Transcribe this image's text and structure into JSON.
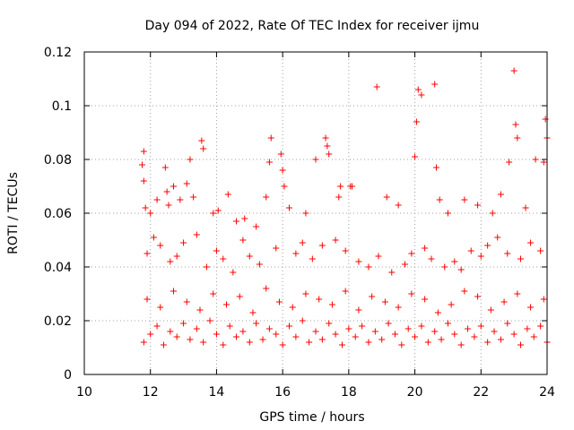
{
  "chart_data": {
    "type": "scatter",
    "title": "Day 094 of 2022, Rate Of TEC Index for receiver ijmu",
    "xlabel": "GPS time / hours",
    "ylabel": "ROTI / TECUs",
    "xlim": [
      10,
      24
    ],
    "ylim": [
      0,
      0.12
    ],
    "x_ticks": [
      10,
      12,
      14,
      16,
      18,
      20,
      22,
      24
    ],
    "x_tick_labels": [
      "10",
      "12",
      "14",
      "16",
      "18",
      "20",
      "22",
      "24"
    ],
    "y_ticks": [
      0,
      0.02,
      0.04,
      0.06,
      0.08,
      0.1,
      0.12
    ],
    "y_tick_labels": [
      "0",
      "0.02",
      "0.04",
      "0.06",
      "0.08",
      "0.1",
      "0.12"
    ],
    "grid": true,
    "marker": "+",
    "color": "#ff0000",
    "series": [
      {
        "name": "ROTI",
        "x": [
          11.75,
          11.8,
          11.8,
          11.85,
          12.0,
          12.2,
          12.45,
          12.5,
          12.55,
          12.7,
          12.9,
          13.1,
          13.2,
          13.3,
          13.55,
          13.6,
          13.9,
          14.05,
          14.35,
          14.6,
          14.85,
          15.2,
          15.5,
          15.6,
          15.65,
          15.95,
          16.0,
          16.05,
          16.2,
          16.7,
          17.0,
          17.3,
          17.35,
          17.4,
          17.7,
          17.75,
          18.05,
          18.1,
          18.85,
          19.15,
          19.5,
          20.0,
          20.05,
          20.1,
          20.2,
          20.6,
          20.65,
          20.75,
          21.0,
          21.5,
          21.9,
          22.35,
          22.6,
          22.85,
          23.0,
          23.05,
          23.1,
          23.35,
          23.65,
          23.9,
          23.95,
          24.0,
          11.9,
          12.1,
          12.3,
          12.6,
          12.8,
          13.0,
          13.4,
          13.7,
          14.0,
          14.2,
          14.5,
          14.8,
          15.0,
          15.3,
          15.8,
          16.4,
          16.6,
          16.9,
          17.2,
          17.6,
          17.9,
          18.3,
          18.6,
          18.9,
          19.3,
          19.7,
          19.9,
          20.3,
          20.5,
          20.9,
          21.2,
          21.4,
          21.7,
          22.0,
          22.2,
          22.5,
          22.8,
          23.2,
          23.5,
          23.8,
          11.8,
          12.0,
          12.2,
          12.4,
          12.6,
          12.8,
          13.0,
          13.2,
          13.4,
          13.6,
          13.8,
          14.0,
          14.2,
          14.4,
          14.6,
          14.8,
          15.0,
          15.2,
          15.4,
          15.6,
          15.8,
          16.0,
          16.2,
          16.4,
          16.6,
          16.8,
          17.0,
          17.2,
          17.4,
          17.6,
          17.8,
          18.0,
          18.2,
          18.4,
          18.6,
          18.8,
          19.0,
          19.2,
          19.4,
          19.6,
          19.8,
          20.0,
          20.2,
          20.4,
          20.6,
          20.8,
          21.0,
          21.2,
          21.4,
          21.6,
          21.8,
          22.0,
          22.2,
          22.4,
          22.6,
          22.8,
          23.0,
          23.2,
          23.4,
          23.6,
          23.8,
          24.0,
          11.9,
          12.3,
          12.7,
          13.1,
          13.5,
          13.9,
          14.3,
          14.7,
          15.1,
          15.5,
          15.9,
          16.3,
          16.7,
          17.1,
          17.5,
          17.9,
          18.3,
          18.7,
          19.1,
          19.5,
          19.9,
          20.3,
          20.7,
          21.1,
          21.5,
          21.9,
          22.3,
          22.7,
          23.1,
          23.5,
          23.9
        ],
        "y": [
          0.078,
          0.083,
          0.072,
          0.062,
          0.06,
          0.065,
          0.077,
          0.068,
          0.063,
          0.07,
          0.065,
          0.071,
          0.08,
          0.066,
          0.087,
          0.084,
          0.06,
          0.061,
          0.067,
          0.057,
          0.058,
          0.055,
          0.066,
          0.079,
          0.088,
          0.082,
          0.076,
          0.07,
          0.062,
          0.06,
          0.08,
          0.088,
          0.085,
          0.082,
          0.066,
          0.07,
          0.07,
          0.07,
          0.107,
          0.066,
          0.063,
          0.081,
          0.094,
          0.106,
          0.104,
          0.108,
          0.077,
          0.065,
          0.06,
          0.065,
          0.063,
          0.06,
          0.067,
          0.079,
          0.113,
          0.093,
          0.088,
          0.062,
          0.08,
          0.079,
          0.095,
          0.088,
          0.045,
          0.051,
          0.048,
          0.042,
          0.044,
          0.049,
          0.052,
          0.04,
          0.046,
          0.043,
          0.038,
          0.05,
          0.044,
          0.041,
          0.047,
          0.045,
          0.049,
          0.043,
          0.048,
          0.05,
          0.046,
          0.042,
          0.04,
          0.044,
          0.038,
          0.041,
          0.045,
          0.047,
          0.043,
          0.04,
          0.042,
          0.039,
          0.046,
          0.044,
          0.048,
          0.051,
          0.045,
          0.043,
          0.049,
          0.046,
          0.012,
          0.015,
          0.018,
          0.011,
          0.016,
          0.014,
          0.019,
          0.013,
          0.017,
          0.012,
          0.02,
          0.015,
          0.011,
          0.018,
          0.014,
          0.016,
          0.012,
          0.019,
          0.013,
          0.017,
          0.015,
          0.011,
          0.018,
          0.014,
          0.02,
          0.012,
          0.016,
          0.013,
          0.019,
          0.015,
          0.011,
          0.017,
          0.014,
          0.018,
          0.012,
          0.016,
          0.013,
          0.019,
          0.015,
          0.011,
          0.017,
          0.014,
          0.018,
          0.012,
          0.016,
          0.013,
          0.019,
          0.015,
          0.011,
          0.017,
          0.014,
          0.018,
          0.012,
          0.016,
          0.013,
          0.019,
          0.015,
          0.011,
          0.017,
          0.014,
          0.018,
          0.012,
          0.028,
          0.025,
          0.031,
          0.027,
          0.024,
          0.03,
          0.026,
          0.029,
          0.023,
          0.032,
          0.027,
          0.025,
          0.03,
          0.028,
          0.026,
          0.031,
          0.024,
          0.029,
          0.027,
          0.025,
          0.03,
          0.028,
          0.023,
          0.026,
          0.031,
          0.029,
          0.024,
          0.027,
          0.03,
          0.025,
          0.028
        ]
      }
    ]
  }
}
